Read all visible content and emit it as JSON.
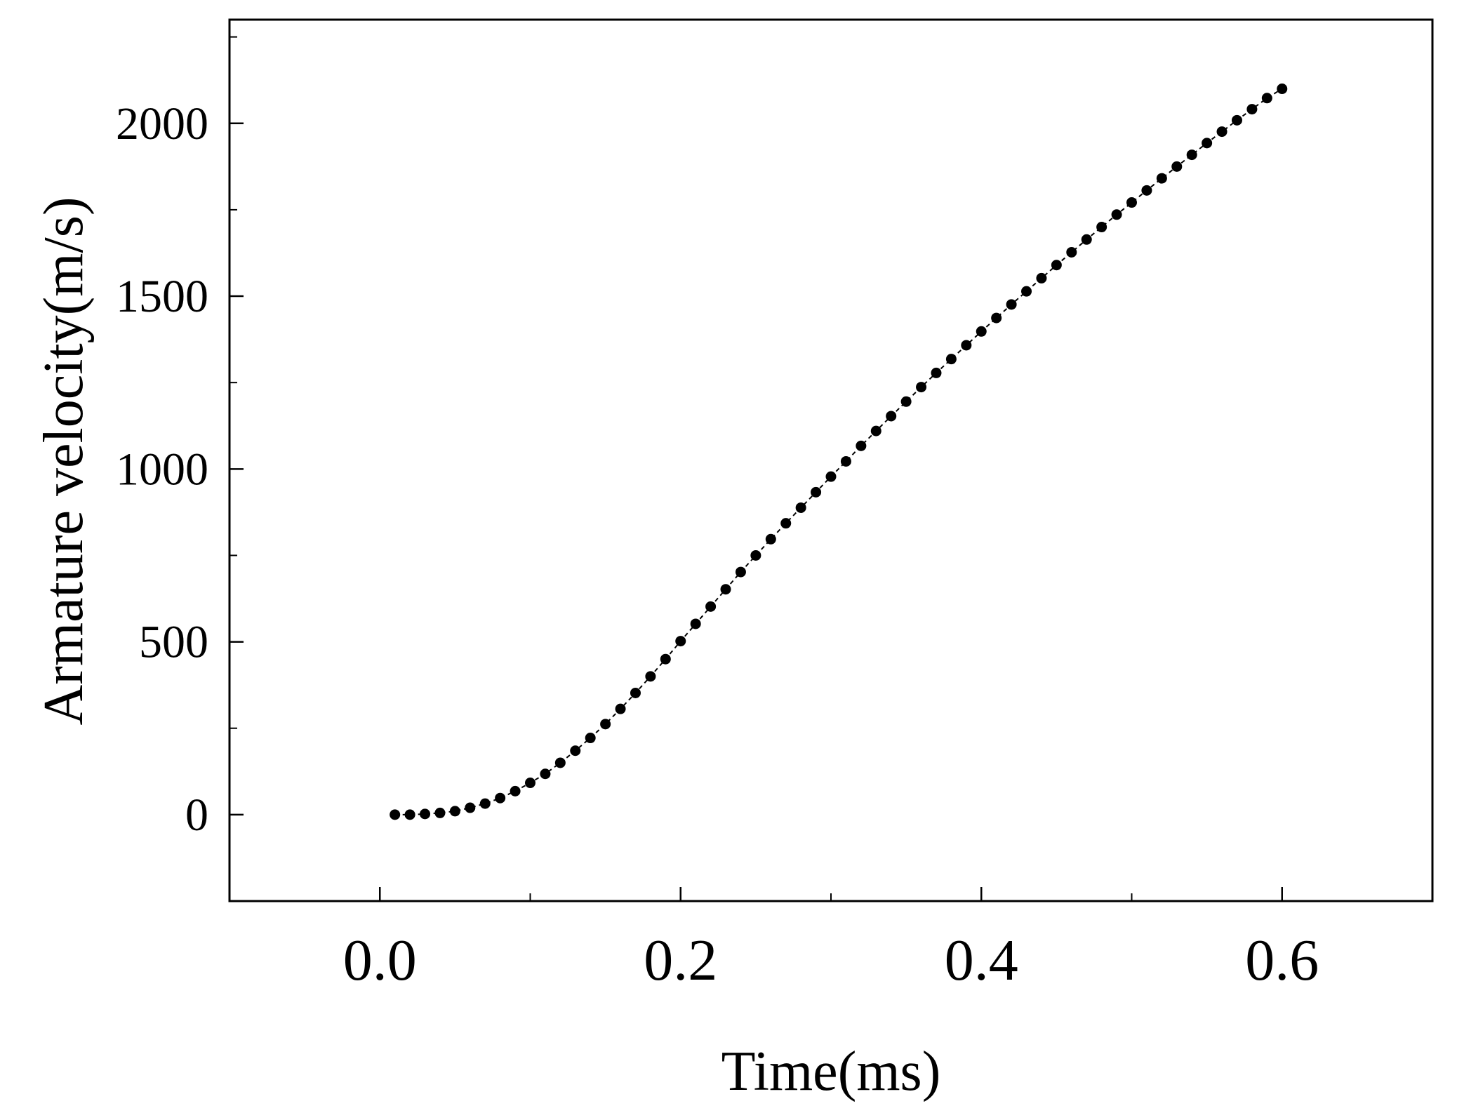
{
  "chart_data": {
    "type": "scatter",
    "title": "",
    "xlabel": "Time(ms)",
    "ylabel": "Armature velocity(m/s)",
    "xlim": [
      -0.1,
      0.7
    ],
    "ylim": [
      -250,
      2300
    ],
    "x_ticks": [
      {
        "value": 0.0,
        "label": "0.0"
      },
      {
        "value": 0.2,
        "label": "0.2"
      },
      {
        "value": 0.4,
        "label": "0.4"
      },
      {
        "value": 0.6,
        "label": "0.6"
      }
    ],
    "x_minor_ticks": [
      0.1,
      0.3,
      0.5
    ],
    "y_ticks": [
      {
        "value": 0,
        "label": "0"
      },
      {
        "value": 500,
        "label": "500"
      },
      {
        "value": 1000,
        "label": "1000"
      },
      {
        "value": 1500,
        "label": "1500"
      },
      {
        "value": 2000,
        "label": "2000"
      }
    ],
    "y_minor_ticks": [
      -250,
      250,
      750,
      1250,
      1750,
      2250
    ],
    "grid": false,
    "series": [
      {
        "marker": "circle",
        "line_style": "dashed",
        "color": "#000000",
        "points": [
          [
            0.01,
            0
          ],
          [
            0.02,
            0
          ],
          [
            0.03,
            2
          ],
          [
            0.04,
            5
          ],
          [
            0.05,
            10
          ],
          [
            0.06,
            20
          ],
          [
            0.07,
            32
          ],
          [
            0.08,
            48
          ],
          [
            0.09,
            68
          ],
          [
            0.1,
            92
          ],
          [
            0.11,
            118
          ],
          [
            0.12,
            150
          ],
          [
            0.13,
            185
          ],
          [
            0.14,
            222
          ],
          [
            0.15,
            262
          ],
          [
            0.16,
            306
          ],
          [
            0.17,
            352
          ],
          [
            0.18,
            400
          ],
          [
            0.19,
            450
          ],
          [
            0.2,
            502
          ],
          [
            0.21,
            552
          ],
          [
            0.22,
            602
          ],
          [
            0.23,
            652
          ],
          [
            0.24,
            702
          ],
          [
            0.25,
            750
          ],
          [
            0.26,
            797
          ],
          [
            0.27,
            843
          ],
          [
            0.28,
            888
          ],
          [
            0.29,
            933
          ],
          [
            0.3,
            978
          ],
          [
            0.31,
            1022
          ],
          [
            0.32,
            1067
          ],
          [
            0.33,
            1110
          ],
          [
            0.34,
            1153
          ],
          [
            0.35,
            1195
          ],
          [
            0.36,
            1237
          ],
          [
            0.37,
            1278
          ],
          [
            0.38,
            1318
          ],
          [
            0.39,
            1358
          ],
          [
            0.4,
            1398
          ],
          [
            0.41,
            1437
          ],
          [
            0.42,
            1476
          ],
          [
            0.43,
            1514
          ],
          [
            0.44,
            1552
          ],
          [
            0.45,
            1590
          ],
          [
            0.46,
            1627
          ],
          [
            0.47,
            1664
          ],
          [
            0.48,
            1700
          ],
          [
            0.49,
            1736
          ],
          [
            0.5,
            1771
          ],
          [
            0.51,
            1806
          ],
          [
            0.52,
            1841
          ],
          [
            0.53,
            1875
          ],
          [
            0.54,
            1909
          ],
          [
            0.55,
            1943
          ],
          [
            0.56,
            1976
          ],
          [
            0.57,
            2009
          ],
          [
            0.58,
            2041
          ],
          [
            0.59,
            2073
          ],
          [
            0.6,
            2100
          ]
        ]
      }
    ]
  }
}
